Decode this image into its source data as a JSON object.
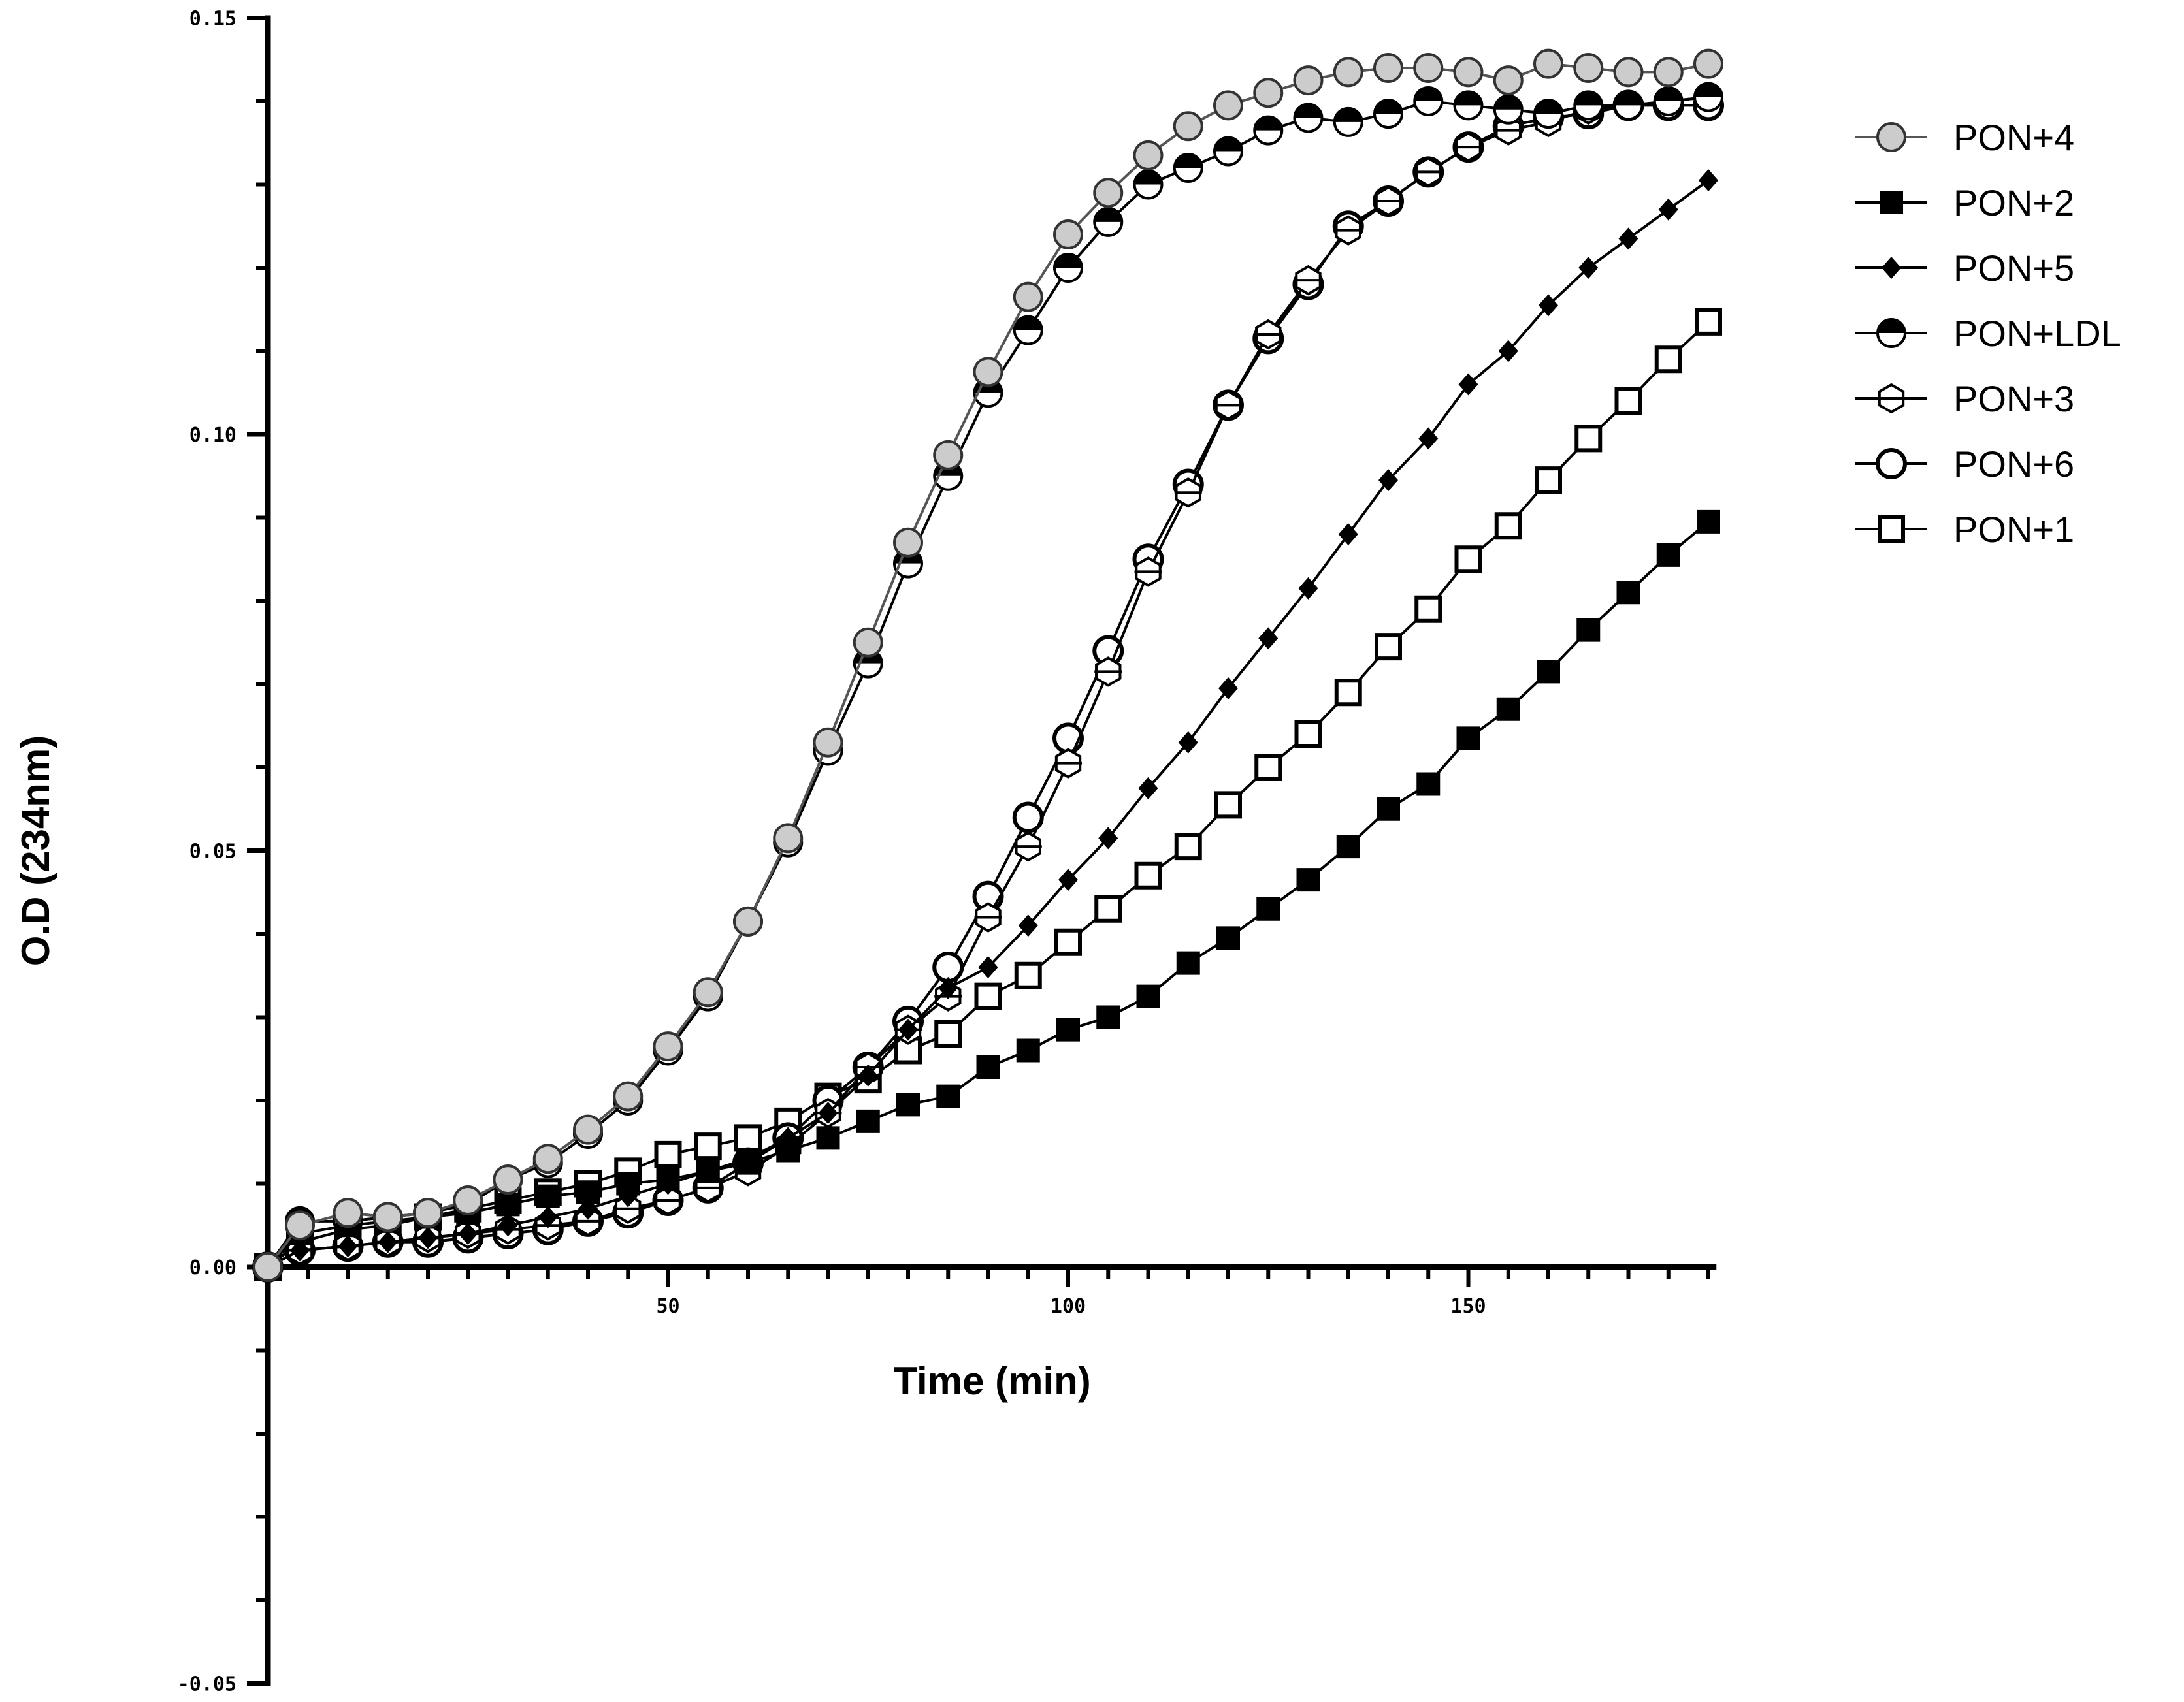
{
  "chart_data": {
    "type": "line",
    "title": "",
    "xlabel": "Time (min)",
    "ylabel": "O.D (234nm)",
    "xlim": [
      0,
      181
    ],
    "ylim": [
      -0.05,
      0.15
    ],
    "xticks": [
      50,
      100,
      150
    ],
    "xtick_labels": [
      "50",
      "100",
      "150"
    ],
    "yticks": [
      -0.05,
      0.0,
      0.05,
      0.1,
      0.15
    ],
    "ytick_labels": [
      "-0.05",
      "0.00",
      "0.05",
      "0.10",
      "0.15"
    ],
    "grid": false,
    "legend": "right",
    "x": [
      0,
      4,
      10,
      15,
      20,
      25,
      30,
      35,
      40,
      45,
      50,
      55,
      60,
      65,
      70,
      75,
      80,
      85,
      90,
      95,
      100,
      105,
      110,
      115,
      120,
      125,
      130,
      135,
      140,
      145,
      150,
      155,
      160,
      165,
      170,
      175,
      180
    ],
    "series": [
      {
        "name": "PON+4",
        "marker": "circle-gray",
        "line_color": "#555555",
        "values": [
          0,
          0.005,
          0.0065,
          0.006,
          0.0065,
          0.008,
          0.0105,
          0.013,
          0.0165,
          0.0205,
          0.0265,
          0.033,
          0.0415,
          0.0515,
          0.063,
          0.075,
          0.087,
          0.0975,
          0.1075,
          0.1165,
          0.124,
          0.129,
          0.1335,
          0.137,
          0.1395,
          0.141,
          0.1425,
          0.1435,
          0.144,
          0.144,
          0.1435,
          0.1425,
          0.1445,
          0.144,
          0.1435,
          0.1435,
          0.1445
        ]
      },
      {
        "name": "PON+2",
        "marker": "square-filled",
        "line_color": "#000000",
        "values": [
          0,
          0.004,
          0.005,
          0.0055,
          0.006,
          0.0065,
          0.0075,
          0.0085,
          0.009,
          0.01,
          0.0105,
          0.0115,
          0.0125,
          0.014,
          0.0155,
          0.0175,
          0.0195,
          0.0205,
          0.024,
          0.026,
          0.0285,
          0.03,
          0.0325,
          0.0365,
          0.0395,
          0.043,
          0.0465,
          0.0505,
          0.055,
          0.058,
          0.0635,
          0.067,
          0.0715,
          0.0765,
          0.081,
          0.0855,
          0.0895
        ]
      },
      {
        "name": "PON+5",
        "marker": "diamond-filled",
        "line_color": "#000000",
        "values": [
          0,
          0.002,
          0.0025,
          0.003,
          0.0035,
          0.004,
          0.005,
          0.006,
          0.007,
          0.0085,
          0.01,
          0.0115,
          0.013,
          0.0155,
          0.0185,
          0.023,
          0.0285,
          0.0335,
          0.036,
          0.041,
          0.0465,
          0.0515,
          0.0575,
          0.063,
          0.0695,
          0.0755,
          0.0815,
          0.088,
          0.0945,
          0.0995,
          0.106,
          0.11,
          0.1155,
          0.12,
          0.1235,
          0.127,
          0.1305
        ]
      },
      {
        "name": "PON+LDL",
        "marker": "circle-half",
        "line_color": "#000000",
        "values": [
          0,
          0.0055,
          0.0055,
          0.006,
          0.0065,
          0.0075,
          0.0105,
          0.0125,
          0.016,
          0.02,
          0.026,
          0.0325,
          0.0415,
          0.051,
          0.062,
          0.0725,
          0.0845,
          0.095,
          0.105,
          0.1125,
          0.12,
          0.1255,
          0.13,
          0.132,
          0.134,
          0.1365,
          0.138,
          0.1375,
          0.1385,
          0.14,
          0.1395,
          0.139,
          0.1385,
          0.1395,
          0.1395,
          0.14,
          0.1405
        ]
      },
      {
        "name": "PON+3",
        "marker": "hexagon-half",
        "line_color": "#000000",
        "values": [
          0,
          0.002,
          0.0025,
          0.003,
          0.0035,
          0.004,
          0.0045,
          0.005,
          0.0055,
          0.007,
          0.008,
          0.0095,
          0.0115,
          0.0145,
          0.0185,
          0.024,
          0.0285,
          0.0325,
          0.042,
          0.0505,
          0.0605,
          0.0715,
          0.0835,
          0.093,
          0.1035,
          0.112,
          0.1185,
          0.1245,
          0.128,
          0.1315,
          0.1345,
          0.1365,
          0.1375,
          0.139,
          0.1395,
          0.14,
          0.1405
        ]
      },
      {
        "name": "PON+6",
        "marker": "circle-open",
        "line_color": "#000000",
        "values": [
          0,
          0.002,
          0.0025,
          0.003,
          0.003,
          0.0035,
          0.004,
          0.0045,
          0.0055,
          0.0065,
          0.008,
          0.0095,
          0.0125,
          0.0155,
          0.02,
          0.024,
          0.0295,
          0.036,
          0.0445,
          0.054,
          0.0635,
          0.074,
          0.085,
          0.094,
          0.1035,
          0.1115,
          0.118,
          0.125,
          0.128,
          0.1315,
          0.1345,
          0.137,
          0.138,
          0.1385,
          0.1395,
          0.1395,
          0.1395
        ]
      },
      {
        "name": "PON+1",
        "marker": "square-open",
        "line_color": "#000000",
        "values": [
          0,
          0.003,
          0.0045,
          0.005,
          0.006,
          0.007,
          0.008,
          0.009,
          0.01,
          0.0115,
          0.0135,
          0.0145,
          0.0155,
          0.0175,
          0.0205,
          0.0225,
          0.026,
          0.028,
          0.0325,
          0.035,
          0.039,
          0.043,
          0.047,
          0.0505,
          0.0555,
          0.06,
          0.064,
          0.069,
          0.0745,
          0.079,
          0.085,
          0.089,
          0.0945,
          0.0995,
          0.104,
          0.109,
          0.1135
        ]
      }
    ]
  }
}
